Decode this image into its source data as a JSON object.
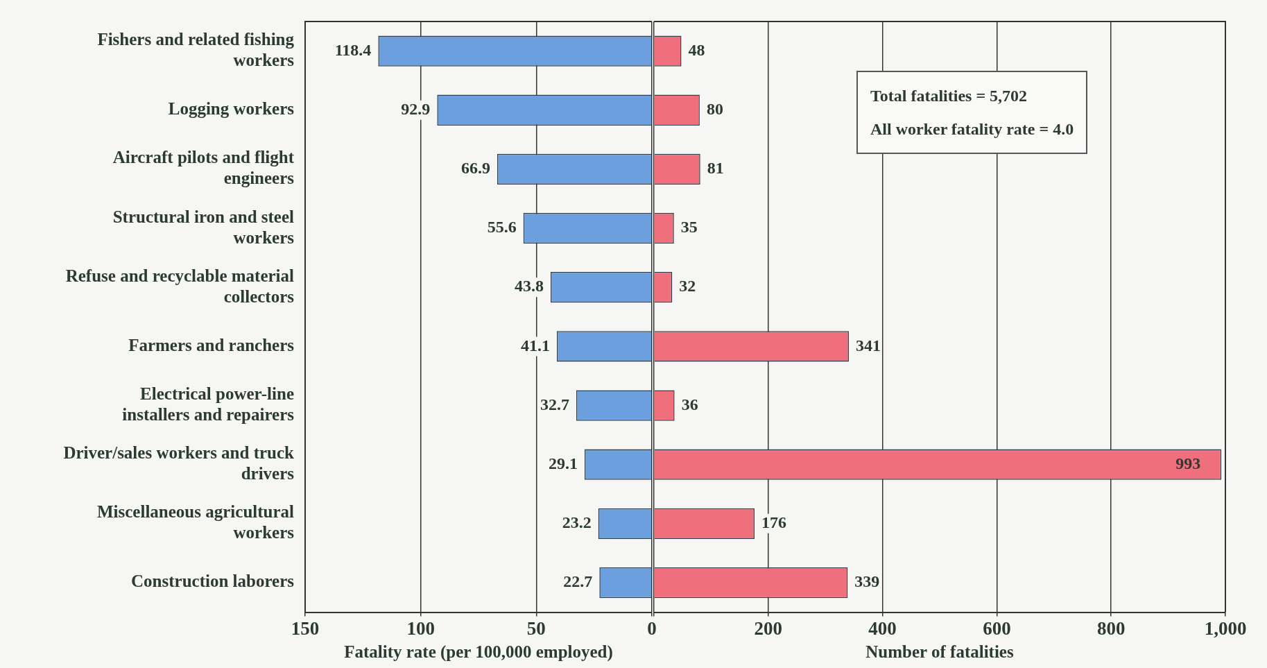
{
  "chart_data": [
    {
      "type": "bar",
      "orientation": "horizontal",
      "categories": [
        "Fishers and related fishing workers",
        "Logging workers",
        "Aircraft pilots and flight engineers",
        "Structural iron and steel workers",
        "Refuse and recyclable material collectors",
        "Farmers and ranchers",
        "Electrical power-line installers and repairers",
        "Driver/sales workers and truck drivers",
        "Miscellaneous agricultural workers",
        "Construction laborers"
      ],
      "series": [
        {
          "color": "#6b9fde",
          "values": [
            118.4,
            92.9,
            66.9,
            55.6,
            43.8,
            41.1,
            32.7,
            29.1,
            23.2,
            22.7
          ]
        }
      ],
      "xlim": [
        150,
        0
      ],
      "xticks": [
        150,
        100,
        50,
        0
      ],
      "xlabel": "Fatality rate (per 100,000 employed)",
      "grid": "x",
      "data_labels": true
    },
    {
      "type": "bar",
      "orientation": "horizontal",
      "categories": [
        null,
        null,
        null,
        null,
        null,
        null,
        null,
        null,
        null,
        null
      ],
      "series": [
        {
          "color": "#ef6f7c",
          "values": [
            48,
            80,
            81,
            35,
            32,
            341,
            36,
            993,
            176,
            339
          ]
        }
      ],
      "xlim": [
        0,
        1000
      ],
      "xticks": [
        {
          "value": 0,
          "label": null
        },
        200,
        400,
        600,
        800,
        {
          "value": 1000,
          "label": "1,000"
        }
      ],
      "xlabel": "Number of fatalities",
      "grid": "x",
      "data_labels": true,
      "tick_labels": "x",
      "annotations": [
        "Total fatalities = 5,702",
        "All worker fatality rate = 4.0"
      ]
    }
  ]
}
